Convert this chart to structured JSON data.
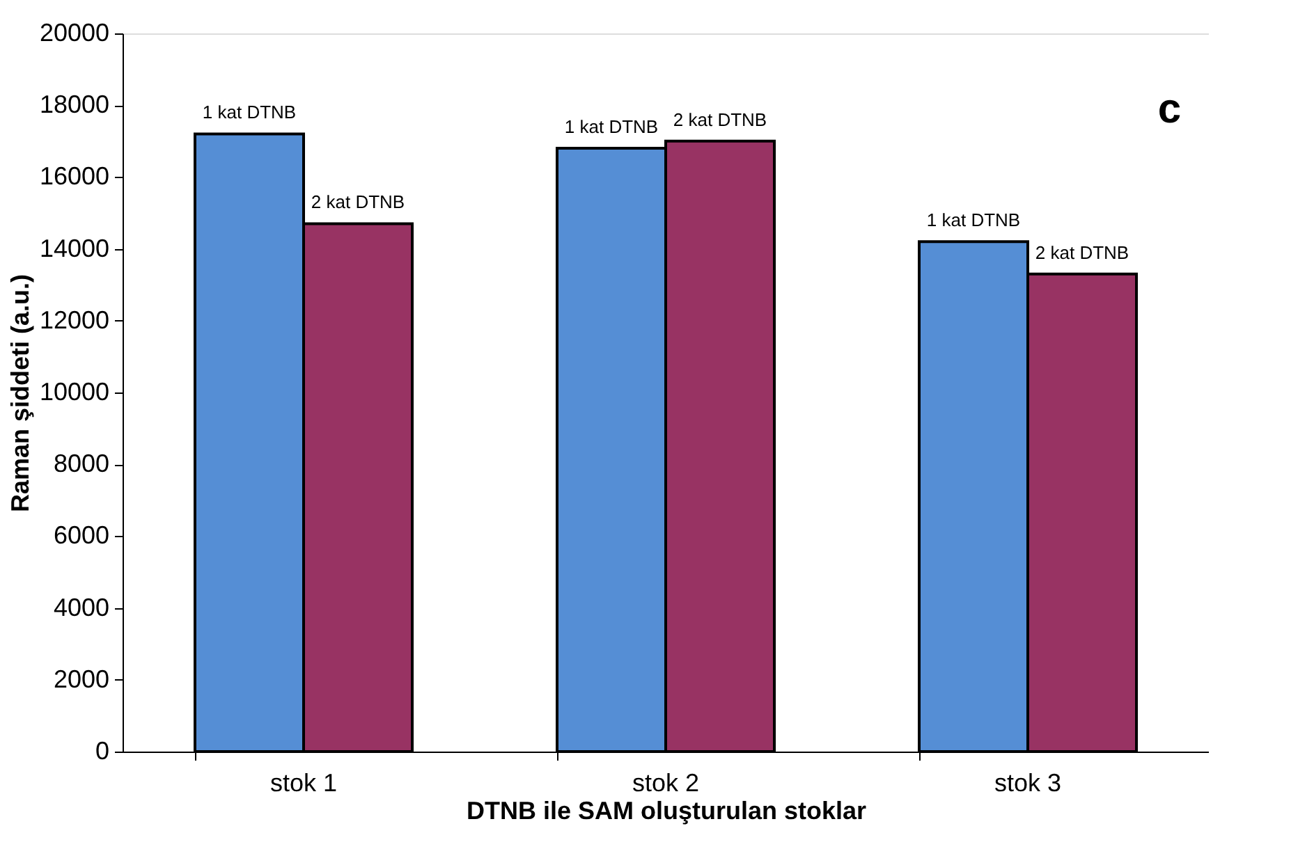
{
  "chart_data": {
    "type": "bar",
    "xlabel": "DTNB ile SAM oluşturulan stoklar",
    "ylabel": "Raman şiddeti (a.u.)",
    "categories": [
      "stok 1",
      "stok 2",
      "stok 3"
    ],
    "series": [
      {
        "name": "1 kat DTNB",
        "color": "#558ed5",
        "values": [
          17200,
          16800,
          14200
        ]
      },
      {
        "name": "2 kat DTNB",
        "color": "#983363",
        "values": [
          14700,
          17000,
          13300
        ]
      }
    ],
    "ylim": [
      0,
      20000
    ],
    "yticks": [
      0,
      2000,
      4000,
      6000,
      8000,
      10000,
      12000,
      14000,
      16000,
      18000,
      20000
    ],
    "grid": false,
    "legend": false,
    "annotations": [
      "c"
    ]
  }
}
